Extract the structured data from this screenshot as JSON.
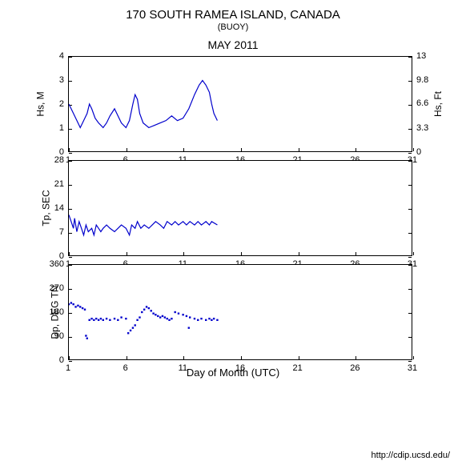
{
  "title": "170 SOUTH RAMEA ISLAND, CANADA",
  "subtitle": "(BUOY)",
  "month_label": "MAY 2011",
  "xlabel": "Day of Month (UTC)",
  "credit": "http://cdip.ucsd.edu/",
  "line_color": "#0000cc",
  "scatter_color": "#0000cc",
  "background_color": "#ffffff",
  "border_color": "#000000",
  "xlim": [
    1,
    31
  ],
  "xtick_step": 5,
  "xticks": [
    1,
    6,
    11,
    16,
    21,
    26,
    31
  ],
  "panels": [
    {
      "id": "hs",
      "type": "line",
      "ylabel_left": "Hs, M",
      "ylabel_right": "Hs, Ft",
      "ylim_left": [
        0,
        4
      ],
      "yticks_left": [
        0,
        1,
        2,
        3,
        4
      ],
      "ylim_right": [
        0,
        13
      ],
      "yticks_right": [
        0,
        3.3,
        6.6,
        9.8,
        13
      ],
      "data": [
        [
          1.0,
          2.0
        ],
        [
          1.2,
          1.8
        ],
        [
          1.5,
          1.5
        ],
        [
          1.8,
          1.2
        ],
        [
          2.0,
          1.0
        ],
        [
          2.3,
          1.3
        ],
        [
          2.6,
          1.6
        ],
        [
          2.8,
          2.0
        ],
        [
          3.0,
          1.8
        ],
        [
          3.3,
          1.4
        ],
        [
          3.6,
          1.2
        ],
        [
          4.0,
          1.0
        ],
        [
          4.3,
          1.2
        ],
        [
          4.6,
          1.5
        ],
        [
          5.0,
          1.8
        ],
        [
          5.3,
          1.5
        ],
        [
          5.6,
          1.2
        ],
        [
          6.0,
          1.0
        ],
        [
          6.3,
          1.3
        ],
        [
          6.6,
          2.0
        ],
        [
          6.8,
          2.4
        ],
        [
          7.0,
          2.2
        ],
        [
          7.2,
          1.6
        ],
        [
          7.5,
          1.2
        ],
        [
          8.0,
          1.0
        ],
        [
          8.5,
          1.1
        ],
        [
          9.0,
          1.2
        ],
        [
          9.5,
          1.3
        ],
        [
          10.0,
          1.5
        ],
        [
          10.5,
          1.3
        ],
        [
          11.0,
          1.4
        ],
        [
          11.5,
          1.8
        ],
        [
          12.0,
          2.4
        ],
        [
          12.4,
          2.8
        ],
        [
          12.7,
          3.0
        ],
        [
          13.0,
          2.8
        ],
        [
          13.3,
          2.5
        ],
        [
          13.5,
          2.0
        ],
        [
          13.7,
          1.6
        ],
        [
          14.0,
          1.3
        ]
      ]
    },
    {
      "id": "tp",
      "type": "line",
      "ylabel_left": "Tp, SEC",
      "ylim_left": [
        0,
        28
      ],
      "yticks_left": [
        0,
        7,
        14,
        21,
        28
      ],
      "data": [
        [
          1.0,
          12
        ],
        [
          1.2,
          10
        ],
        [
          1.4,
          8
        ],
        [
          1.5,
          11
        ],
        [
          1.7,
          7
        ],
        [
          1.9,
          10
        ],
        [
          2.1,
          8
        ],
        [
          2.3,
          6
        ],
        [
          2.5,
          9
        ],
        [
          2.7,
          7
        ],
        [
          3.0,
          8
        ],
        [
          3.2,
          6
        ],
        [
          3.4,
          9
        ],
        [
          3.6,
          8
        ],
        [
          3.8,
          7
        ],
        [
          4.0,
          8
        ],
        [
          4.3,
          9
        ],
        [
          4.6,
          8
        ],
        [
          5.0,
          7
        ],
        [
          5.3,
          8
        ],
        [
          5.6,
          9
        ],
        [
          6.0,
          8
        ],
        [
          6.3,
          6
        ],
        [
          6.5,
          9
        ],
        [
          6.8,
          8
        ],
        [
          7.0,
          10
        ],
        [
          7.3,
          8
        ],
        [
          7.6,
          9
        ],
        [
          8.0,
          8
        ],
        [
          8.3,
          9
        ],
        [
          8.6,
          10
        ],
        [
          9.0,
          9
        ],
        [
          9.3,
          8
        ],
        [
          9.6,
          10
        ],
        [
          10.0,
          9
        ],
        [
          10.3,
          10
        ],
        [
          10.6,
          9
        ],
        [
          11.0,
          10
        ],
        [
          11.3,
          9
        ],
        [
          11.6,
          10
        ],
        [
          12.0,
          9
        ],
        [
          12.3,
          10
        ],
        [
          12.6,
          9
        ],
        [
          13.0,
          10
        ],
        [
          13.3,
          9
        ],
        [
          13.5,
          10
        ],
        [
          14.0,
          9
        ]
      ]
    },
    {
      "id": "dp",
      "type": "scatter",
      "ylabel_left": "Dp, DEG TN",
      "ylim_left": [
        0,
        360
      ],
      "yticks_left": [
        0,
        90,
        180,
        270,
        360
      ],
      "data": [
        [
          1.0,
          210
        ],
        [
          1.2,
          215
        ],
        [
          1.4,
          210
        ],
        [
          1.6,
          200
        ],
        [
          1.8,
          205
        ],
        [
          2.0,
          200
        ],
        [
          2.2,
          195
        ],
        [
          2.4,
          190
        ],
        [
          2.5,
          90
        ],
        [
          2.6,
          80
        ],
        [
          2.8,
          150
        ],
        [
          3.0,
          155
        ],
        [
          3.2,
          150
        ],
        [
          3.4,
          155
        ],
        [
          3.6,
          150
        ],
        [
          3.8,
          155
        ],
        [
          4.0,
          150
        ],
        [
          4.3,
          155
        ],
        [
          4.6,
          150
        ],
        [
          5.0,
          155
        ],
        [
          5.3,
          150
        ],
        [
          5.6,
          160
        ],
        [
          6.0,
          155
        ],
        [
          6.2,
          100
        ],
        [
          6.4,
          110
        ],
        [
          6.6,
          120
        ],
        [
          6.8,
          130
        ],
        [
          7.0,
          150
        ],
        [
          7.2,
          160
        ],
        [
          7.4,
          180
        ],
        [
          7.6,
          190
        ],
        [
          7.8,
          200
        ],
        [
          8.0,
          195
        ],
        [
          8.2,
          185
        ],
        [
          8.4,
          175
        ],
        [
          8.6,
          170
        ],
        [
          8.8,
          165
        ],
        [
          9.0,
          160
        ],
        [
          9.2,
          165
        ],
        [
          9.4,
          160
        ],
        [
          9.6,
          155
        ],
        [
          9.8,
          150
        ],
        [
          10.0,
          155
        ],
        [
          10.3,
          180
        ],
        [
          10.6,
          175
        ],
        [
          11.0,
          170
        ],
        [
          11.3,
          165
        ],
        [
          11.6,
          160
        ],
        [
          12.0,
          155
        ],
        [
          12.3,
          150
        ],
        [
          12.6,
          155
        ],
        [
          13.0,
          150
        ],
        [
          13.3,
          155
        ],
        [
          13.5,
          150
        ],
        [
          13.7,
          155
        ],
        [
          14.0,
          150
        ],
        [
          11.5,
          120
        ]
      ]
    }
  ]
}
